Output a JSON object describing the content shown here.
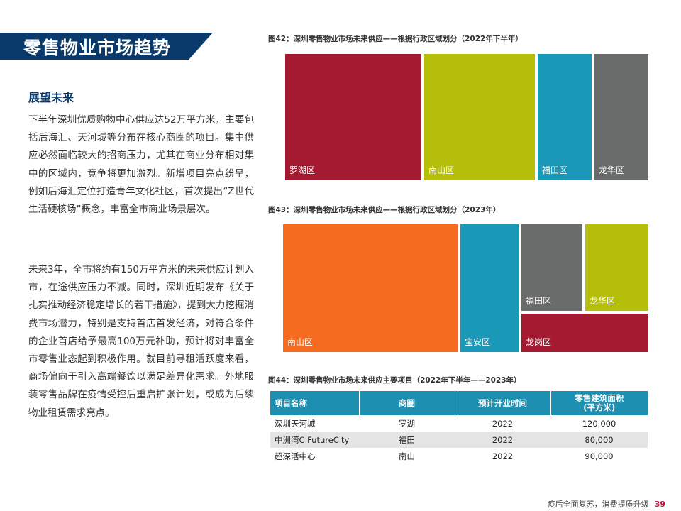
{
  "header": {
    "title": "零售物业市场趋势"
  },
  "left": {
    "heading": "展望未来",
    "para1": "下半年深圳优质购物中心供应达52万平方米，主要包括后海汇、天河城等分布在核心商圈的项目。集中供应必然面临较大的招商压力，尤其在商业分布相对集中的区域内，竞争将更加激烈。新增项目亮点纷呈，例如后海汇定位打造青年文化社区，首次提出“Z世代生活硬核场”概念，丰富全市商业场景层次。",
    "para2": "未来3年，全市将约有150万平方米的未来供应计划入市，在途供应压力不减。同时，深圳近期发布《关于扎实推动经济稳定增长的若干措施》，提到大力挖掘消费市场潜力，特别是支持首店首发经济，对符合条件的企业首店给予最高100万元补助，预计将对丰富全市零售业态起到积极作用。就目前寻租活跃度来看，商场偏向于引入高端餐饮以满足差异化需求。外地服装零售品牌在疫情受控后重启扩张计划，或成为后续物业租赁需求亮点。"
  },
  "fig42": {
    "title": "图42：深圳零售物业市场未来供应——根据行政区域划分（2022年下半年）",
    "regions": [
      {
        "label": "罗湖区",
        "color": "#a31a31"
      },
      {
        "label": "南山区",
        "color": "#b5bf0a"
      },
      {
        "label": "福田区",
        "color": "#1a98b7"
      },
      {
        "label": "龙华区",
        "color": "#6a6b6b"
      }
    ]
  },
  "fig43": {
    "title": "图43：深圳零售物业市场未来供应——根据行政区域划分（2023年）",
    "regions": [
      {
        "label": "南山区",
        "color": "#f56b1f"
      },
      {
        "label": "宝安区",
        "color": "#1a98b7"
      },
      {
        "label": "福田区",
        "color": "#6a6b6b"
      },
      {
        "label": "龙华区",
        "color": "#b5bf0a"
      },
      {
        "label": "龙岗区",
        "color": "#a31a31"
      }
    ]
  },
  "fig44": {
    "title": "图44：深圳零售物业市场未来供应主要项目（2022年下半年——2023年）",
    "headers": [
      "项目名称",
      "商圈",
      "预计开业时间",
      "零售建筑面积\n(平方米)"
    ],
    "rows": [
      [
        "深圳天河城",
        "罗湖",
        "2022",
        "120,000"
      ],
      [
        "中洲湾C FutureCity",
        "福田",
        "2022",
        "80,000"
      ],
      [
        "超深活中心",
        "南山",
        "2022",
        "90,000"
      ]
    ]
  },
  "footer": {
    "text": "疫后全面复苏，消费提质升级",
    "page": "39"
  }
}
